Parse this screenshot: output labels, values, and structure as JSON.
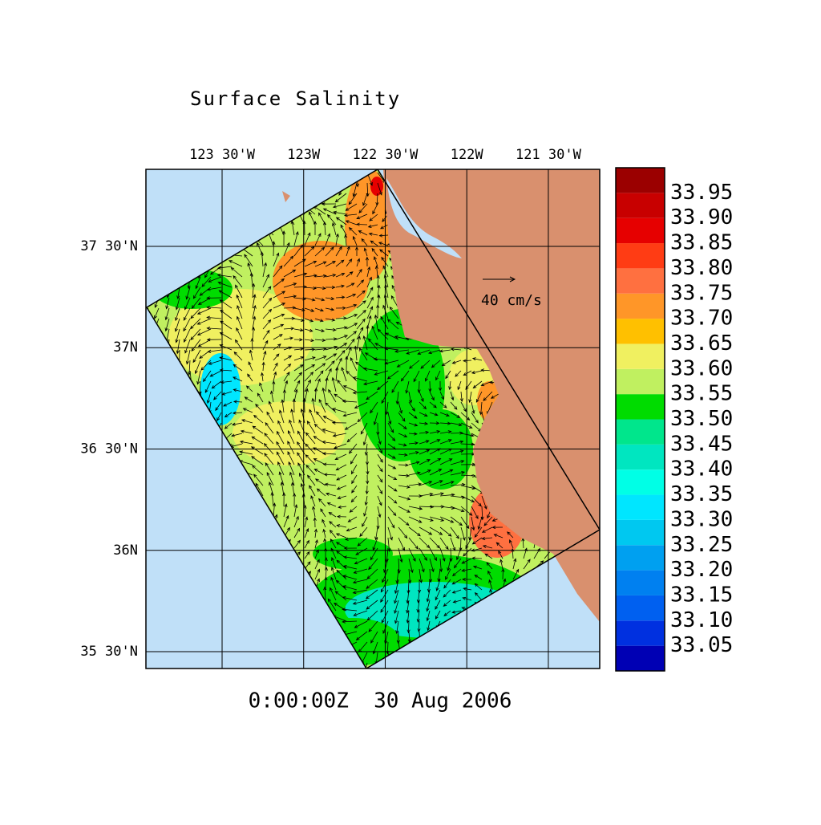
{
  "title": "Surface Salinity",
  "map": {
    "lonlim": [
      -123.967,
      -121.185
    ],
    "latlim": [
      35.417,
      37.88
    ],
    "lonticks": [
      {
        "value": -123.5,
        "label": "123 30'W"
      },
      {
        "value": -123,
        "label": "123W"
      },
      {
        "value": -122.5,
        "label": "122 30'W"
      },
      {
        "value": -122,
        "label": "122W"
      },
      {
        "value": -121.5,
        "label": "121 30'W"
      }
    ],
    "latticks": [
      {
        "value": 37.5,
        "label": "37 30'N"
      },
      {
        "value": 37,
        "label": "37N"
      },
      {
        "value": 36.5,
        "label": "36 30'N"
      },
      {
        "value": 36,
        "label": "36N"
      },
      {
        "value": 35.5,
        "label": "35 30'N"
      }
    ]
  },
  "vector_scale": {
    "label": "40 cm/s"
  },
  "timestamp": "0:00:00Z  30 Aug 2006",
  "colorbar": {
    "lim": [
      33,
      34
    ],
    "ticks": [
      {
        "value": 33.95,
        "label": "33.95"
      },
      {
        "value": 33.9,
        "label": "33.90"
      },
      {
        "value": 33.85,
        "label": "33.85"
      },
      {
        "value": 33.8,
        "label": "33.80"
      },
      {
        "value": 33.75,
        "label": "33.75"
      },
      {
        "value": 33.7,
        "label": "33.70"
      },
      {
        "value": 33.65,
        "label": "33.65"
      },
      {
        "value": 33.6,
        "label": "33.60"
      },
      {
        "value": 33.55,
        "label": "33.55"
      },
      {
        "value": 33.5,
        "label": "33.50"
      },
      {
        "value": 33.45,
        "label": "33.45"
      },
      {
        "value": 33.4,
        "label": "33.40"
      },
      {
        "value": 33.35,
        "label": "33.35"
      },
      {
        "value": 33.3,
        "label": "33.30"
      },
      {
        "value": 33.25,
        "label": "33.25"
      },
      {
        "value": 33.2,
        "label": "33.20"
      },
      {
        "value": 33.15,
        "label": "33.15"
      },
      {
        "value": 33.1,
        "label": "33.10"
      },
      {
        "value": 33.05,
        "label": "33.05"
      }
    ],
    "colors": [
      "#0000b4",
      "#0030e0",
      "#0060f0",
      "#0080f0",
      "#00a0f0",
      "#00c8f0",
      "#00e6ff",
      "#00ffe6",
      "#00e6c0",
      "#00e68c",
      "#00dc00",
      "#c0f060",
      "#f0f060",
      "#ffc000",
      "#ff9628",
      "#ff7040",
      "#ff3c14",
      "#e60000",
      "#c80000",
      "#9b0000"
    ]
  }
}
